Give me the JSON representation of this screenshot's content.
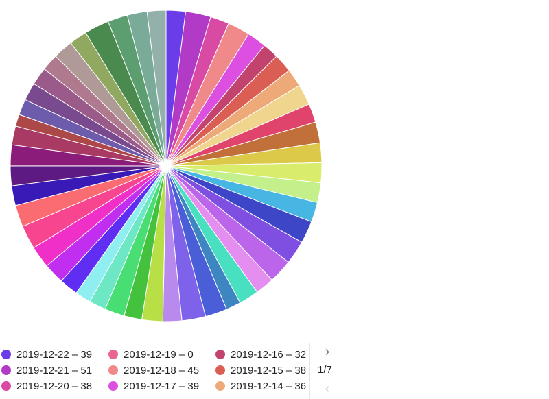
{
  "chart_data": {
    "type": "pie",
    "title": "",
    "slices": [
      {
        "label": "2019-12-22",
        "value": 39,
        "color": "#6a3de8"
      },
      {
        "label": "2019-12-21",
        "value": 51,
        "color": "#b13bc6"
      },
      {
        "label": "2019-12-20",
        "value": 38,
        "color": "#d84aa3"
      },
      {
        "label": "2019-12-19",
        "value": 0,
        "color": "#e8668f"
      },
      {
        "label": "2019-12-18",
        "value": 45,
        "color": "#f08a8a"
      },
      {
        "label": "2019-12-17",
        "value": 39,
        "color": "#dc4fe0"
      },
      {
        "label": "2019-12-16",
        "value": 32,
        "color": "#c2446e"
      },
      {
        "label": "2019-12-15",
        "value": 38,
        "color": "#db5e54"
      },
      {
        "label": "2019-12-14",
        "value": 36,
        "color": "#eda978"
      },
      {
        "value": 42,
        "color": "#f0d58e"
      },
      {
        "value": 38,
        "color": "#e0436b"
      },
      {
        "value": 42,
        "color": "#c2703a"
      },
      {
        "value": 40,
        "color": "#dcc94a"
      },
      {
        "value": 40,
        "color": "#d9ec6c"
      },
      {
        "value": 40,
        "color": "#c3f08a"
      },
      {
        "value": 40,
        "color": "#47b6e2"
      },
      {
        "value": 45,
        "color": "#3e46c8"
      },
      {
        "value": 48,
        "color": "#7e4fe0"
      },
      {
        "value": 48,
        "color": "#bb66ea"
      },
      {
        "value": 38,
        "color": "#e48ef0"
      },
      {
        "value": 40,
        "color": "#48e0c0"
      },
      {
        "value": 30,
        "color": "#3e86c2"
      },
      {
        "value": 44,
        "color": "#4a5ed8"
      },
      {
        "value": 48,
        "color": "#7e63ea"
      },
      {
        "value": 38,
        "color": "#b98aee"
      },
      {
        "value": 42,
        "color": "#b8e046"
      },
      {
        "value": 36,
        "color": "#44c23e"
      },
      {
        "value": 40,
        "color": "#48de74"
      },
      {
        "value": 34,
        "color": "#6ee8c4"
      },
      {
        "value": 32,
        "color": "#8eeef0"
      },
      {
        "value": 38,
        "color": "#5f2ef2"
      },
      {
        "value": 42,
        "color": "#c12ef0"
      },
      {
        "value": 44,
        "color": "#f02ec8"
      },
      {
        "value": 48,
        "color": "#f74590"
      },
      {
        "value": 44,
        "color": "#fb6b72"
      },
      {
        "value": 40,
        "color": "#3a1ab6"
      },
      {
        "value": 40,
        "color": "#5c1a82"
      },
      {
        "value": 42,
        "color": "#8c1c7a"
      },
      {
        "value": 38,
        "color": "#a83a64"
      },
      {
        "value": 24,
        "color": "#ad4848"
      },
      {
        "value": 32,
        "color": "#6c5cab"
      },
      {
        "value": 36,
        "color": "#7a4a8e"
      },
      {
        "value": 36,
        "color": "#9a5a8a"
      },
      {
        "value": 34,
        "color": "#b07a8e"
      },
      {
        "value": 40,
        "color": "#b09a98"
      },
      {
        "value": 36,
        "color": "#90a860"
      },
      {
        "value": 50,
        "color": "#4a8a4e"
      },
      {
        "value": 40,
        "color": "#5c9e70"
      },
      {
        "value": 40,
        "color": "#7aaa98"
      },
      {
        "value": 38,
        "color": "#94b0aa"
      }
    ]
  },
  "legend": {
    "items": [
      {
        "text": "2019-12-22 – 39",
        "color": "#6a3de8"
      },
      {
        "text": "2019-12-21 – 51",
        "color": "#b13bc6"
      },
      {
        "text": "2019-12-20 – 38",
        "color": "#d84aa3"
      },
      {
        "text": "2019-12-19 – 0",
        "color": "#e8668f"
      },
      {
        "text": "2019-12-18 – 45",
        "color": "#f08a8a"
      },
      {
        "text": "2019-12-17 – 39",
        "color": "#dc4fe0"
      },
      {
        "text": "2019-12-16 – 32",
        "color": "#c2446e"
      },
      {
        "text": "2019-12-15 – 38",
        "color": "#db5e54"
      },
      {
        "text": "2019-12-14 – 36",
        "color": "#eda978"
      }
    ]
  },
  "pager": {
    "text": "1/7",
    "next_icon": "chevron-right-icon",
    "prev_icon": "chevron-left-icon"
  }
}
